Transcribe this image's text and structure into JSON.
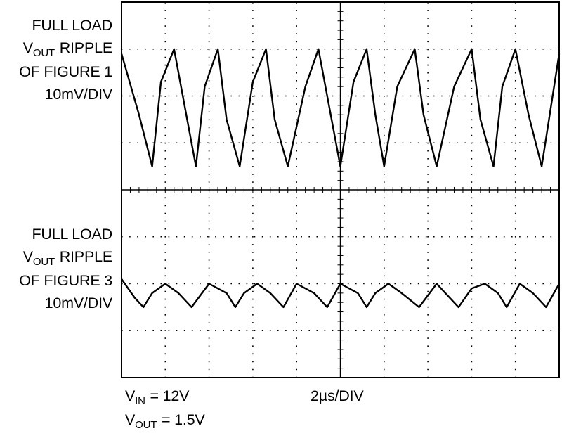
{
  "chart_data": {
    "type": "line",
    "grid": true,
    "grid_divisions": {
      "x": 10,
      "y": 8
    },
    "time_per_division": "2µs/DIV",
    "series": [
      {
        "name": "FULL LOAD VOUT RIPPLE OF FIGURE 1",
        "scale_per_division": "10mV/DIV",
        "x_unit": "div",
        "y_unit": "div",
        "x": [
          0.0,
          0.4,
          0.7,
          0.9,
          1.2,
          1.5,
          1.7,
          1.9,
          2.2,
          2.4,
          2.7,
          3.0,
          3.3,
          3.5,
          3.8,
          4.2,
          4.5,
          4.8,
          5.0,
          5.3,
          5.6,
          5.8,
          6.0,
          6.3,
          6.7,
          6.9,
          7.2,
          7.6,
          8.0,
          8.2,
          8.5,
          8.7,
          9.0,
          9.3,
          9.6,
          10.0
        ],
        "y": [
          2.9,
          1.6,
          0.5,
          2.3,
          3.0,
          1.5,
          0.5,
          2.2,
          3.0,
          1.5,
          0.5,
          2.3,
          3.0,
          1.5,
          0.5,
          2.2,
          3.0,
          1.5,
          0.5,
          2.3,
          3.0,
          1.6,
          0.5,
          2.2,
          3.0,
          1.6,
          0.5,
          2.2,
          3.0,
          1.5,
          0.5,
          2.2,
          3.0,
          1.6,
          0.5,
          2.9
        ]
      },
      {
        "name": "FULL LOAD VOUT RIPPLE OF FIGURE 3",
        "scale_per_division": "10mV/DIV",
        "x_unit": "div",
        "y_unit": "div",
        "x": [
          0.0,
          0.3,
          0.5,
          0.7,
          1.0,
          1.3,
          1.6,
          2.0,
          2.4,
          2.6,
          2.8,
          3.1,
          3.4,
          3.7,
          4.0,
          4.4,
          4.7,
          5.0,
          5.4,
          5.6,
          5.8,
          6.1,
          6.4,
          6.8,
          7.2,
          7.4,
          7.7,
          8.0,
          8.3,
          8.6,
          8.8,
          9.1,
          9.4,
          9.7,
          10.0
        ],
        "y": [
          -1.9,
          -2.3,
          -2.5,
          -2.2,
          -2.0,
          -2.2,
          -2.5,
          -2.0,
          -2.2,
          -2.5,
          -2.2,
          -2.0,
          -2.2,
          -2.5,
          -2.0,
          -2.2,
          -2.5,
          -2.0,
          -2.2,
          -2.5,
          -2.2,
          -2.0,
          -2.2,
          -2.5,
          -2.0,
          -2.2,
          -2.5,
          -2.1,
          -2.0,
          -2.2,
          -2.5,
          -2.0,
          -2.2,
          -2.5,
          -2.0
        ]
      }
    ]
  },
  "labels": {
    "trace1": {
      "line1": "FULL LOAD",
      "line2_main": "V",
      "line2_sub": "OUT",
      "line2_rest": " RIPPLE",
      "line3": "OF FIGURE 1",
      "line4": "10mV/DIV"
    },
    "trace2": {
      "line1": "FULL LOAD",
      "line2_main": "V",
      "line2_sub": "OUT",
      "line2_rest": " RIPPLE",
      "line3": "OF FIGURE 3",
      "line4": "10mV/DIV"
    },
    "bottom": {
      "vin_main": "V",
      "vin_sub": "IN",
      "vin_rest": " = 12V",
      "vout_main": "V",
      "vout_sub": "OUT",
      "vout_rest": " = 1.5V",
      "timebase": "2µs/DIV"
    }
  }
}
